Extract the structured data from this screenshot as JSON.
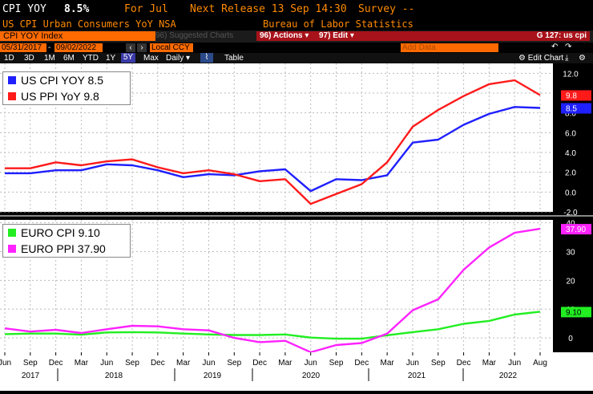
{
  "header": {
    "ticker": "CPI YOY",
    "value": "8.5%",
    "period": "For Jul",
    "next_release": "Next Release 13 Sep 14:30",
    "survey": "Survey --",
    "description": "US CPI Urban Consumers YoY NSA",
    "source": "Bureau of Labor Statistics"
  },
  "toolbar": {
    "security": "CPI YOY Index",
    "suggested_charts": "96) Suggested Charts",
    "actions": "96) Actions",
    "edit": "97) Edit",
    "chart_id": "G 127: us cpi",
    "start_date": "05/31/2017",
    "end_date": "09/02/2022",
    "currency": "Local CCY",
    "add_data": "Add Data",
    "edit_chart": "Edit Chart",
    "ranges": [
      "1D",
      "3D",
      "1M",
      "6M",
      "YTD",
      "1Y",
      "5Y",
      "Max"
    ],
    "selected_range": "5Y",
    "frequency": "Daily",
    "table": "Table"
  },
  "colors": {
    "us_cpi": "#1f1fff",
    "us_ppi": "#ff1a1a",
    "euro_cpi": "#22ee22",
    "euro_ppi": "#ff22ff",
    "header_orange": "#ff8a00",
    "header_red": "#ff3030",
    "toolbar_orange": "#ff6a00",
    "toolbar_red": "#a8121a"
  },
  "chart_data": [
    {
      "type": "line",
      "ylim": [
        -2,
        13
      ],
      "yticks": [
        "-2.0",
        "0.0",
        "2.0",
        "4.0",
        "6.0",
        "8.0",
        "10.0",
        "12.0"
      ],
      "grid": true,
      "legend_position": "top-left",
      "x": [
        "2017-05",
        "2017-08",
        "2017-11",
        "2018-02",
        "2018-05",
        "2018-08",
        "2018-11",
        "2019-02",
        "2019-05",
        "2019-08",
        "2019-11",
        "2020-02",
        "2020-05",
        "2020-08",
        "2020-11",
        "2021-02",
        "2021-05",
        "2021-08",
        "2021-11",
        "2022-02",
        "2022-05",
        "2022-07"
      ],
      "series": [
        {
          "name": "US CPI YOY 8.5",
          "last_label": "8.5",
          "values": [
            1.9,
            1.9,
            2.2,
            2.2,
            2.8,
            2.7,
            2.2,
            1.5,
            1.8,
            1.7,
            2.1,
            2.3,
            0.1,
            1.3,
            1.2,
            1.7,
            5.0,
            5.3,
            6.8,
            7.9,
            8.6,
            8.5
          ]
        },
        {
          "name": "US PPI YoY 9.8",
          "last_label": "9.8",
          "values": [
            2.4,
            2.4,
            3.0,
            2.7,
            3.1,
            3.3,
            2.5,
            1.9,
            2.2,
            1.8,
            1.1,
            1.3,
            -1.2,
            -0.2,
            0.8,
            3.0,
            6.6,
            8.3,
            9.7,
            10.9,
            11.3,
            9.8
          ]
        }
      ]
    },
    {
      "type": "line",
      "ylim": [
        -5,
        41
      ],
      "yticks": [
        "0",
        "10",
        "20",
        "30",
        "40"
      ],
      "grid": true,
      "legend_position": "top-left",
      "x": [
        "2017-05",
        "2017-08",
        "2017-11",
        "2018-02",
        "2018-05",
        "2018-08",
        "2018-11",
        "2019-02",
        "2019-05",
        "2019-08",
        "2019-11",
        "2020-02",
        "2020-05",
        "2020-08",
        "2020-11",
        "2021-02",
        "2021-05",
        "2021-08",
        "2021-11",
        "2022-02",
        "2022-05",
        "2022-07"
      ],
      "series": [
        {
          "name": "EURO CPI 9.10",
          "last_label": "9.10",
          "values": [
            1.3,
            1.5,
            1.5,
            1.1,
            1.9,
            2.0,
            1.9,
            1.5,
            1.2,
            1.0,
            1.0,
            1.2,
            0.1,
            -0.3,
            -0.3,
            0.9,
            2.0,
            3.0,
            4.9,
            5.9,
            8.1,
            9.1
          ]
        },
        {
          "name": "EURO PPI 37.90",
          "last_label": "37.90",
          "values": [
            3.3,
            2.2,
            2.8,
            1.7,
            3.0,
            4.2,
            4.0,
            3.0,
            2.6,
            0.0,
            -1.5,
            -1.0,
            -5.0,
            -2.5,
            -1.8,
            1.5,
            9.6,
            13.4,
            23.7,
            31.4,
            36.5,
            37.9
          ]
        }
      ]
    }
  ],
  "x_axis": {
    "months": [
      "Jun",
      "Sep",
      "Dec",
      "Mar",
      "Jun",
      "Sep",
      "Dec",
      "Mar",
      "Jun",
      "Sep",
      "Dec",
      "Mar",
      "Jun",
      "Sep",
      "Dec",
      "Mar",
      "Jun",
      "Sep",
      "Dec",
      "Mar",
      "Jun",
      "Aug"
    ],
    "years": [
      "2017",
      "2018",
      "2019",
      "2020",
      "2021",
      "2022"
    ]
  }
}
